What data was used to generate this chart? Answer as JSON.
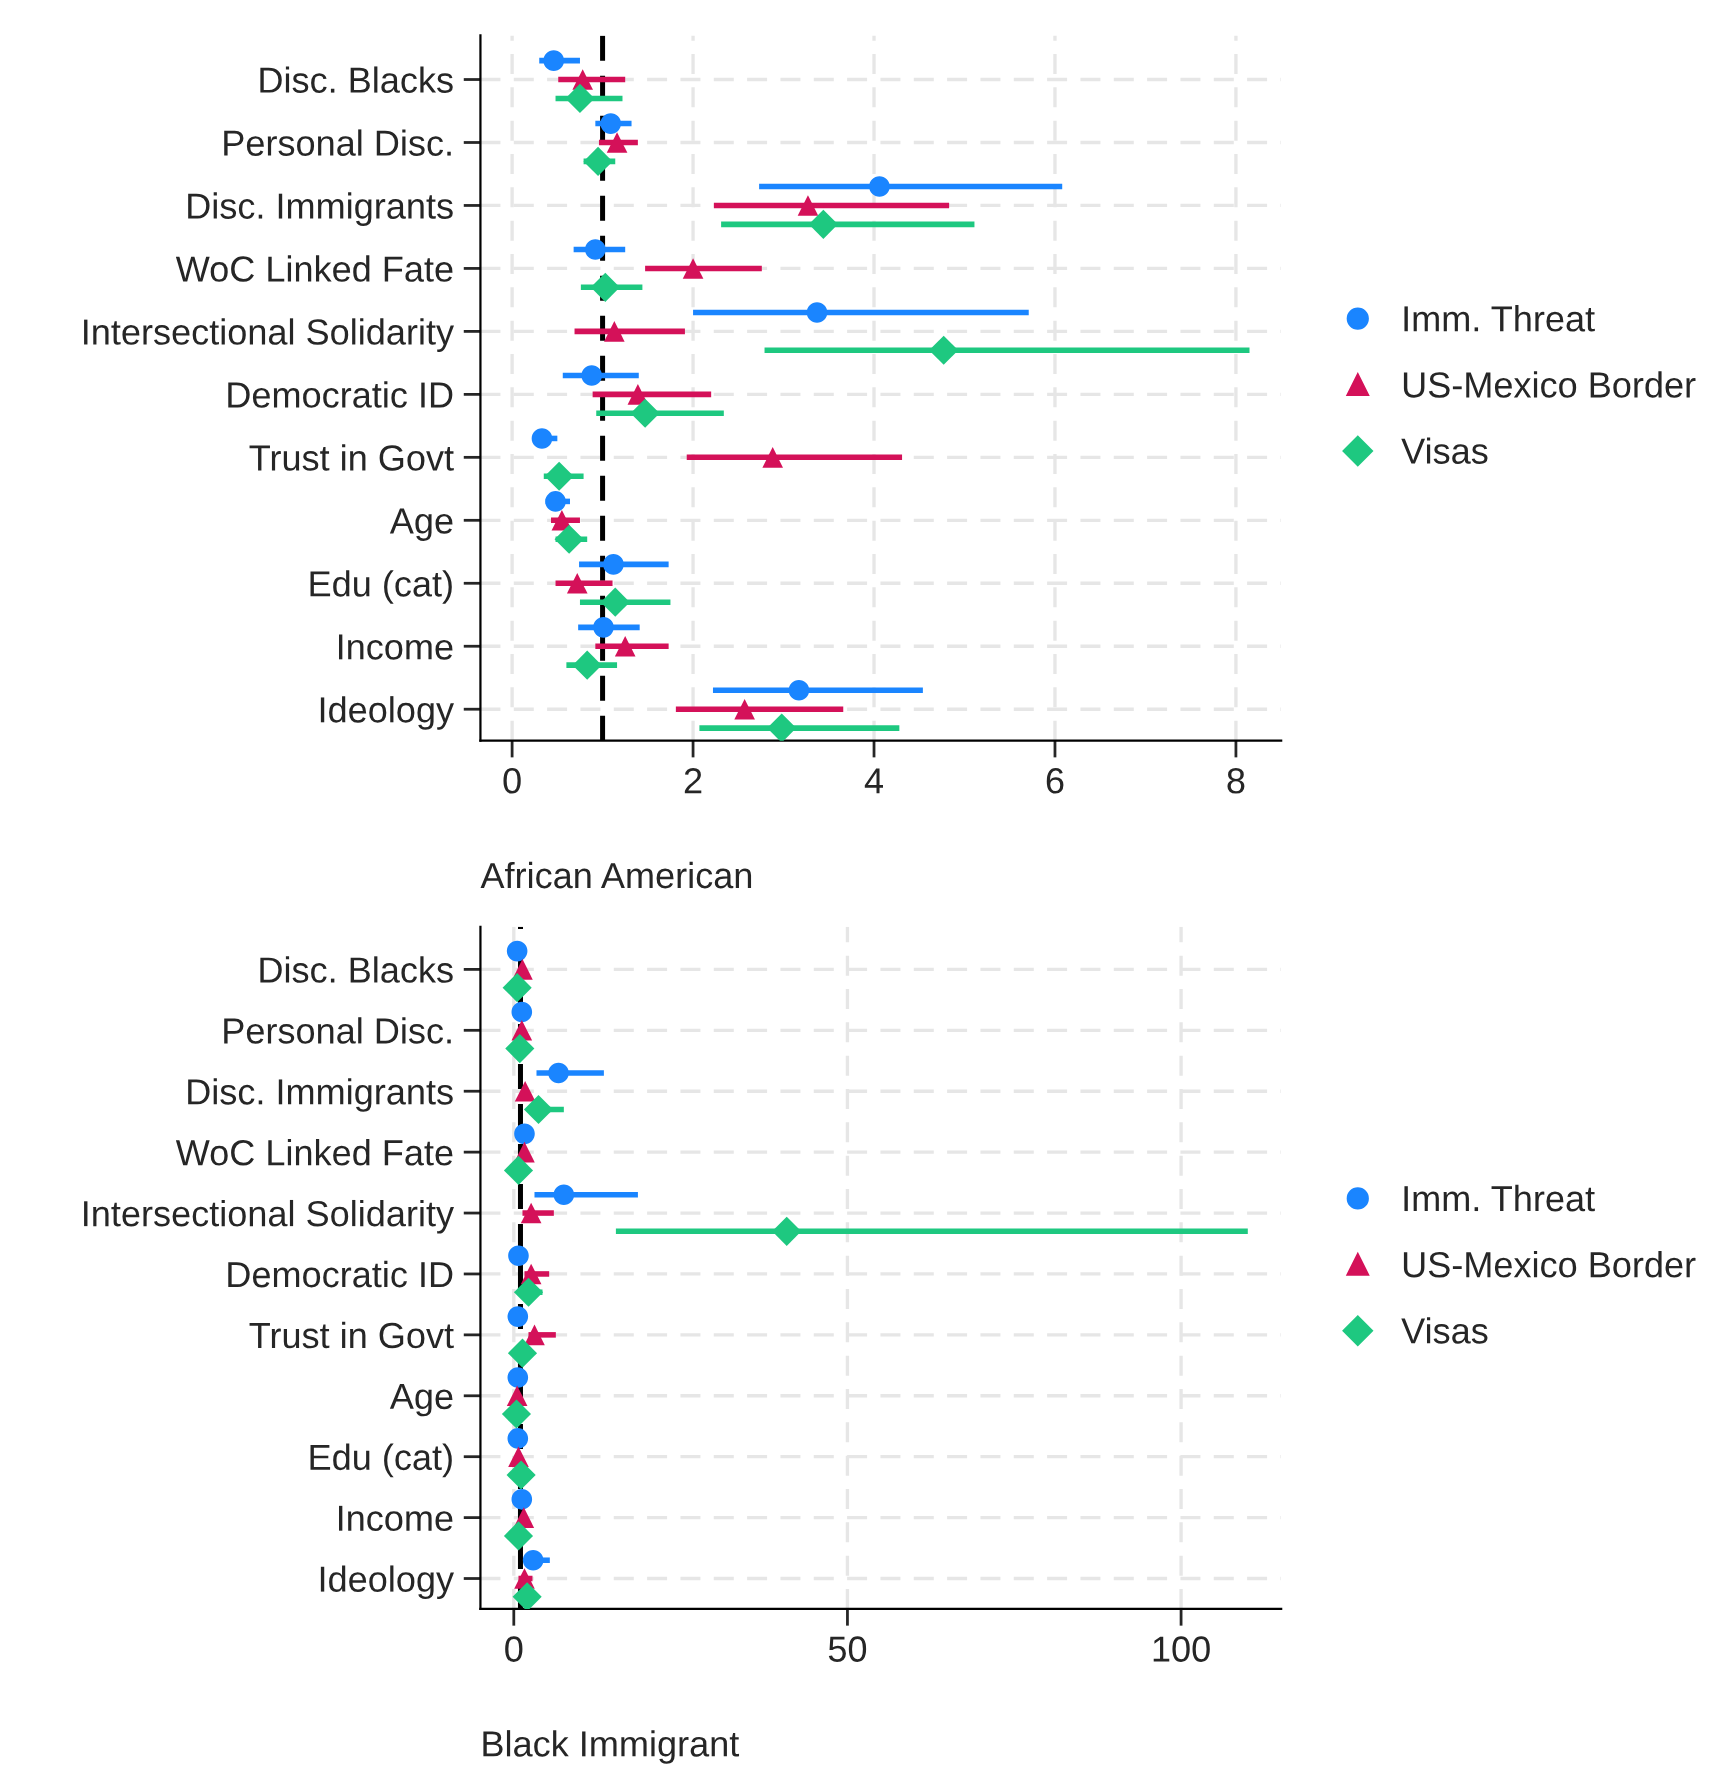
{
  "chart_data": [
    {
      "type": "scatter",
      "orientation": "horizontal",
      "xlabel": "African American",
      "categories": [
        "Disc. Blacks",
        "Personal Disc.",
        "Disc. Immigrants",
        "WoC Linked Fate",
        "Intersectional Solidarity",
        "Democratic ID",
        "Trust in Govt",
        "Age",
        "Edu (cat)",
        "Income",
        "Ideology"
      ],
      "series": [
        {
          "name": "Imm. Threat",
          "color": "#1a85ff",
          "marker": "circle",
          "values": [
            0.46,
            1.09,
            4.06,
            0.92,
            3.37,
            0.88,
            0.33,
            0.48,
            1.12,
            1.01,
            3.17
          ],
          "errors": [
            [
              0.3,
              0.75
            ],
            [
              0.92,
              1.32
            ],
            [
              2.73,
              6.08
            ],
            [
              0.68,
              1.25
            ],
            [
              2.0,
              5.71
            ],
            [
              0.56,
              1.4
            ],
            [
              0.24,
              0.5
            ],
            [
              0.37,
              0.64
            ],
            [
              0.74,
              1.73
            ],
            [
              0.73,
              1.41
            ],
            [
              2.22,
              4.54
            ]
          ]
        },
        {
          "name": "US-Mexico Border",
          "color": "#d41159",
          "marker": "triangle",
          "values": [
            0.78,
            1.16,
            3.27,
            2.0,
            1.13,
            1.39,
            2.88,
            0.55,
            0.72,
            1.25,
            2.57
          ],
          "errors": [
            [
              0.51,
              1.25
            ],
            [
              0.96,
              1.39
            ],
            [
              2.23,
              4.83
            ],
            [
              1.47,
              2.76
            ],
            [
              0.69,
              1.91
            ],
            [
              0.89,
              2.2
            ],
            [
              1.93,
              4.31
            ],
            [
              0.43,
              0.75
            ],
            [
              0.48,
              1.11
            ],
            [
              0.92,
              1.73
            ],
            [
              1.81,
              3.66
            ]
          ]
        },
        {
          "name": "Visas",
          "color": "#1ec880",
          "marker": "diamond",
          "values": [
            0.75,
            0.95,
            3.44,
            1.03,
            4.77,
            1.47,
            0.52,
            0.63,
            1.14,
            0.83,
            2.98
          ],
          "errors": [
            [
              0.48,
              1.22
            ],
            [
              0.79,
              1.14
            ],
            [
              2.31,
              5.11
            ],
            [
              0.76,
              1.44
            ],
            [
              2.79,
              8.15
            ],
            [
              0.93,
              2.34
            ],
            [
              0.35,
              0.79
            ],
            [
              0.48,
              0.83
            ],
            [
              0.75,
              1.75
            ],
            [
              0.6,
              1.16
            ],
            [
              2.07,
              4.28
            ]
          ]
        }
      ],
      "xlim": [
        -0.35,
        8.5
      ],
      "xticks": [
        0,
        2,
        4,
        6,
        8
      ],
      "ref_lines": [
        {
          "axis": "x",
          "value": 1,
          "color": "#000000",
          "line_style": "dashed"
        }
      ],
      "grid": true,
      "legend": "right"
    },
    {
      "type": "scatter",
      "orientation": "horizontal",
      "xlabel": "Black Immigrant",
      "categories": [
        "Disc. Blacks",
        "Personal Disc.",
        "Disc. Immigrants",
        "WoC Linked Fate",
        "Intersectional Solidarity",
        "Democratic ID",
        "Trust in Govt",
        "Age",
        "Edu (cat)",
        "Income",
        "Ideology"
      ],
      "series": [
        {
          "name": "Imm. Threat",
          "color": "#1a85ff",
          "marker": "circle",
          "values": [
            0.5,
            1.2,
            6.7,
            1.6,
            7.5,
            0.7,
            0.6,
            0.6,
            0.6,
            1.2,
            2.9
          ],
          "errors": [
            null,
            null,
            [
              3.4,
              13.5
            ],
            null,
            [
              3.1,
              18.6
            ],
            null,
            null,
            null,
            null,
            null,
            [
              2.0,
              5.4
            ]
          ]
        },
        {
          "name": "US-Mexico Border",
          "color": "#d41159",
          "marker": "triangle",
          "values": [
            1.3,
            1.2,
            1.7,
            1.6,
            2.6,
            2.6,
            3.1,
            0.5,
            0.7,
            1.5,
            1.6
          ],
          "errors": [
            null,
            null,
            null,
            null,
            [
              1.3,
              6.0
            ],
            [
              1.6,
              5.3
            ],
            [
              2.2,
              6.3
            ],
            null,
            null,
            null,
            [
              0.7,
              2.8
            ]
          ]
        },
        {
          "name": "Visas",
          "color": "#1ec880",
          "marker": "diamond",
          "values": [
            0.5,
            0.9,
            3.7,
            0.7,
            40.9,
            2.2,
            1.3,
            0.4,
            1.1,
            0.7,
            2.0
          ],
          "errors": [
            null,
            null,
            [
              2.5,
              7.5
            ],
            null,
            [
              15.3,
              110.0
            ],
            [
              1.2,
              4.3
            ],
            null,
            null,
            null,
            null,
            null
          ]
        }
      ],
      "xlim": [
        -5,
        115
      ],
      "xticks": [
        0,
        50,
        100
      ],
      "ref_lines": [
        {
          "axis": "x",
          "value": 1,
          "color": "#000000",
          "line_style": "dashed"
        }
      ],
      "grid": true,
      "legend": "right"
    }
  ]
}
